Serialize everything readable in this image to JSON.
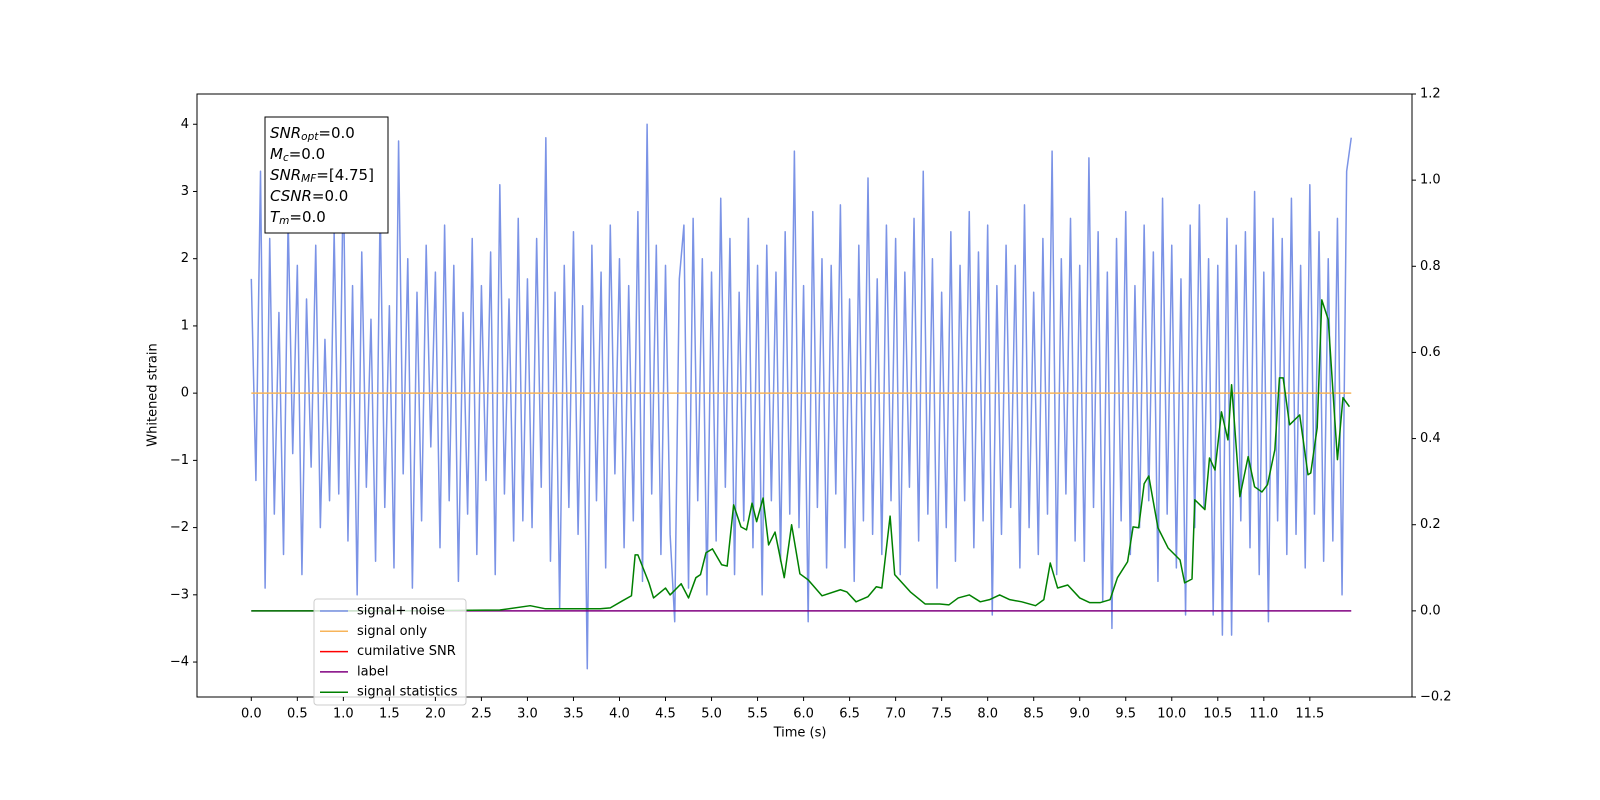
{
  "chart_data": {
    "type": "line",
    "xlabel": "Time (s)",
    "ylabel": "Whitened strain",
    "xlim": [
      -0.59,
      12.61
    ],
    "ylim": [
      -4.52,
      4.45
    ],
    "y2lim": [
      -0.2,
      1.2
    ],
    "xticks": [
      {
        "value": 0,
        "label": "0.0"
      },
      0.5,
      {
        "value": 1,
        "label": "1.0"
      },
      1.5,
      {
        "value": 2,
        "label": "2.0"
      },
      2.5,
      {
        "value": 3,
        "label": "3.0"
      },
      3.5,
      {
        "value": 4,
        "label": "4.0"
      },
      4.5,
      {
        "value": 5,
        "label": "5.0"
      },
      5.5,
      {
        "value": 6,
        "label": "6.0"
      },
      6.5,
      {
        "value": 7,
        "label": "7.0"
      },
      7.5,
      {
        "value": 8,
        "label": "8.0"
      },
      8.5,
      {
        "value": 9,
        "label": "9.0"
      },
      9.5,
      {
        "value": 10,
        "label": "10.0"
      },
      10.5,
      {
        "value": 11,
        "label": "11.0"
      },
      11.5
    ],
    "yticks": [
      {
        "value": -4,
        "label": "−4"
      },
      {
        "value": -3,
        "label": "−3"
      },
      {
        "value": -2,
        "label": "−2"
      },
      {
        "value": -1,
        "label": "−1"
      },
      0,
      1,
      2,
      3,
      4
    ],
    "y2ticks": [
      {
        "value": -0.2,
        "label": "−0.2"
      },
      {
        "value": 0,
        "label": "0.0"
      },
      0.2,
      0.4,
      0.6,
      0.8,
      {
        "value": 1,
        "label": "1.0"
      },
      1.2
    ],
    "legend": "lower left",
    "annotations": [
      {
        "name": "SNR",
        "sub": "opt",
        "text": "=0.0"
      },
      {
        "name": "M",
        "sub": "c",
        "text": "=0.0"
      },
      {
        "name": "SNR",
        "sub": "MF",
        "text": "=[4.75]"
      },
      {
        "name": "CSNR",
        "text": "=0.0"
      },
      {
        "name": "T",
        "sub": "m",
        "text": "=0.0"
      }
    ],
    "series": [
      {
        "name": "signal+ noise",
        "color": "#7b93e6",
        "x": [
          0,
          0.05,
          0.1,
          0.15,
          0.2,
          0.25,
          0.3,
          0.35,
          0.4,
          0.45,
          0.5,
          0.55,
          0.6,
          0.65,
          0.7,
          0.75,
          0.8,
          0.85,
          0.9,
          0.95,
          1,
          1.05,
          1.1,
          1.15,
          1.2,
          1.25,
          1.3,
          1.35,
          1.4,
          1.45,
          1.5,
          1.55,
          1.6,
          1.65,
          1.7,
          1.75,
          1.8,
          1.85,
          1.9,
          1.95,
          2,
          2.05,
          2.1,
          2.15,
          2.2,
          2.25,
          2.3,
          2.35,
          2.4,
          2.45,
          2.5,
          2.55,
          2.6,
          2.65,
          2.7,
          2.75,
          2.8,
          2.85,
          2.9,
          2.95,
          3,
          3.05,
          3.1,
          3.15,
          3.2,
          3.25,
          3.3,
          3.35,
          3.4,
          3.45,
          3.5,
          3.55,
          3.6,
          3.65,
          3.7,
          3.75,
          3.8,
          3.85,
          3.9,
          3.95,
          4,
          4.05,
          4.1,
          4.15,
          4.2,
          4.25,
          4.3,
          4.35,
          4.4,
          4.45,
          4.5,
          4.55,
          4.6,
          4.65,
          4.7,
          4.75,
          4.8,
          4.85,
          4.9,
          4.95,
          5,
          5.05,
          5.1,
          5.15,
          5.2,
          5.25,
          5.3,
          5.35,
          5.4,
          5.45,
          5.5,
          5.55,
          5.6,
          5.65,
          5.7,
          5.75,
          5.8,
          5.85,
          5.9,
          5.95,
          6,
          6.05,
          6.1,
          6.15,
          6.2,
          6.25,
          6.3,
          6.35,
          6.4,
          6.45,
          6.5,
          6.55,
          6.6,
          6.65,
          6.7,
          6.75,
          6.8,
          6.85,
          6.9,
          6.95,
          7,
          7.05,
          7.1,
          7.15,
          7.2,
          7.25,
          7.3,
          7.35,
          7.4,
          7.45,
          7.5,
          7.55,
          7.6,
          7.65,
          7.7,
          7.75,
          7.8,
          7.85,
          7.9,
          7.95,
          8,
          8.05,
          8.1,
          8.15,
          8.2,
          8.25,
          8.3,
          8.35,
          8.4,
          8.45,
          8.5,
          8.55,
          8.6,
          8.65,
          8.7,
          8.75,
          8.8,
          8.85,
          8.9,
          8.95,
          9,
          9.05,
          9.1,
          9.15,
          9.2,
          9.25,
          9.3,
          9.35,
          9.4,
          9.45,
          9.5,
          9.55,
          9.6,
          9.65,
          9.7,
          9.75,
          9.8,
          9.85,
          9.9,
          9.95,
          10,
          10.05,
          10.1,
          10.15,
          10.2,
          10.25,
          10.3,
          10.35,
          10.4,
          10.45,
          10.5,
          10.55,
          10.6,
          10.65,
          10.7,
          10.75,
          10.8,
          10.85,
          10.9,
          10.95,
          11,
          11.05,
          11.1,
          11.15,
          11.2,
          11.25,
          11.3,
          11.35,
          11.4,
          11.45,
          11.5,
          11.55,
          11.6,
          11.65,
          11.7,
          11.75,
          11.8,
          11.85,
          11.9,
          11.95
        ],
        "values": [
          1.7,
          -1.3,
          3.3,
          -2.9,
          2.3,
          -1.8,
          1.2,
          -2.4,
          2.6,
          -0.9,
          1.9,
          -2.7,
          1.4,
          -1.1,
          2.2,
          -2.0,
          0.8,
          -1.6,
          2.4,
          -1.5,
          3.3,
          -2.2,
          1.6,
          -3.0,
          2.1,
          -1.4,
          1.1,
          -2.5,
          2.8,
          -1.7,
          1.3,
          -2.6,
          3.75,
          -1.2,
          2.0,
          -2.9,
          1.5,
          -1.9,
          2.2,
          -0.8,
          1.8,
          -2.3,
          2.5,
          -1.6,
          1.9,
          -2.8,
          1.2,
          -1.8,
          2.3,
          -2.4,
          1.6,
          -1.3,
          2.1,
          -2.7,
          3.1,
          -1.5,
          1.4,
          -2.2,
          2.6,
          -1.9,
          1.7,
          -2.0,
          2.3,
          -1.4,
          3.8,
          -2.5,
          1.5,
          -3.2,
          1.9,
          -1.7,
          2.4,
          -2.1,
          1.3,
          -4.1,
          2.2,
          -1.6,
          1.8,
          -2.6,
          2.5,
          -1.2,
          2.0,
          -2.3,
          1.6,
          -1.9,
          2.7,
          -2.8,
          4.0,
          -1.5,
          2.2,
          -2.4,
          1.9,
          -2.1,
          -3.4,
          1.7,
          2.5,
          -2.9,
          2.6,
          -1.6,
          2.0,
          -3.0,
          1.8,
          -2.2,
          2.9,
          -1.4,
          2.3,
          -2.7,
          1.5,
          -1.9,
          2.6,
          -2.3,
          1.9,
          -3.0,
          2.2,
          -1.6,
          1.8,
          -2.5,
          2.4,
          -1.8,
          3.6,
          -2.0,
          1.6,
          -3.4,
          2.7,
          -1.7,
          2.0,
          -2.6,
          1.9,
          -1.5,
          2.8,
          -2.3,
          1.4,
          -2.8,
          2.2,
          -1.9,
          3.2,
          -2.1,
          1.7,
          -2.4,
          2.5,
          -1.6,
          2.3,
          -2.7,
          1.8,
          -1.4,
          2.6,
          -2.2,
          3.3,
          -1.8,
          2.0,
          -2.9,
          1.5,
          -2.0,
          2.4,
          -2.5,
          1.9,
          -1.6,
          2.7,
          -2.3,
          2.1,
          -1.9,
          2.5,
          -3.3,
          1.6,
          -2.1,
          2.2,
          -1.7,
          1.9,
          -2.6,
          2.8,
          -2.0,
          1.5,
          -2.4,
          2.3,
          -1.8,
          3.6,
          -2.7,
          2.0,
          -1.5,
          2.6,
          -2.2,
          1.9,
          -2.5,
          3.5,
          -1.7,
          2.4,
          -3.1,
          1.8,
          -3.5,
          2.3,
          -1.9,
          2.7,
          -2.4,
          1.6,
          -2.0,
          2.5,
          -1.6,
          2.1,
          -2.8,
          2.9,
          -1.8,
          2.2,
          -2.6,
          1.7,
          -3.3,
          2.5,
          -2.0,
          2.8,
          -1.7,
          2.0,
          -3.3,
          1.9,
          -3.6,
          2.6,
          -3.6,
          2.2,
          -1.9,
          2.4,
          -2.3,
          3.0,
          -2.7,
          1.8,
          -3.4,
          2.6,
          -1.9,
          2.3,
          -2.4,
          2.9,
          -2.1,
          1.9,
          -2.6,
          3.1,
          -1.8,
          2.4,
          -2.5,
          2.0,
          -2.2,
          2.6,
          -3.0,
          3.3,
          3.8
        ]
      },
      {
        "name": "signal only",
        "color": "#f7b45a",
        "x": [
          0,
          11.95
        ],
        "values": [
          0,
          0
        ]
      },
      {
        "name": "cumilative SNR",
        "color": "#ff0000",
        "x": [],
        "values": []
      },
      {
        "name": "label",
        "color": "#800080",
        "axis": "y2",
        "x": [
          0,
          11.95
        ],
        "values": [
          0,
          0
        ]
      },
      {
        "name": "signal statistics",
        "color": "#008000",
        "axis": "y2",
        "x": [
          0,
          0.53,
          1.62,
          2.7,
          3.03,
          3.19,
          3.79,
          3.9,
          4.03,
          4.13,
          4.17,
          4.2,
          4.32,
          4.37,
          4.5,
          4.55,
          4.67,
          4.75,
          4.83,
          4.88,
          4.94,
          5.01,
          5.11,
          5.17,
          5.24,
          5.32,
          5.38,
          5.44,
          5.49,
          5.56,
          5.62,
          5.69,
          5.79,
          5.87,
          5.96,
          6.05,
          6.2,
          6.4,
          6.47,
          6.57,
          6.7,
          6.79,
          6.85,
          6.94,
          6.99,
          7.16,
          7.32,
          7.48,
          7.58,
          7.68,
          7.8,
          7.92,
          8.02,
          8.13,
          8.24,
          8.37,
          8.52,
          8.61,
          8.68,
          8.76,
          8.87,
          9.0,
          9.11,
          9.22,
          9.33,
          9.41,
          9.52,
          9.58,
          9.64,
          9.7,
          9.75,
          9.85,
          9.96,
          10.09,
          10.14,
          10.22,
          10.25,
          10.36,
          10.41,
          10.47,
          10.54,
          10.61,
          10.65,
          10.74,
          10.83,
          10.9,
          10.98,
          11.04,
          11.12,
          11.17,
          11.21,
          11.28,
          11.39,
          11.48,
          11.51,
          11.58,
          11.63,
          11.7,
          11.8,
          11.86,
          11.93
        ],
        "values": [
          0,
          0,
          0,
          0.002,
          0.012,
          0.005,
          0.005,
          0.007,
          0.023,
          0.035,
          0.13,
          0.13,
          0.065,
          0.03,
          0.053,
          0.037,
          0.063,
          0.03,
          0.077,
          0.084,
          0.135,
          0.144,
          0.107,
          0.104,
          0.246,
          0.195,
          0.188,
          0.25,
          0.207,
          0.262,
          0.153,
          0.183,
          0.077,
          0.2,
          0.086,
          0.072,
          0.035,
          0.049,
          0.044,
          0.021,
          0.033,
          0.056,
          0.053,
          0.22,
          0.084,
          0.044,
          0.016,
          0.016,
          0.014,
          0.03,
          0.037,
          0.021,
          0.026,
          0.037,
          0.026,
          0.021,
          0.012,
          0.026,
          0.111,
          0.053,
          0.06,
          0.03,
          0.019,
          0.019,
          0.026,
          0.077,
          0.114,
          0.195,
          0.193,
          0.295,
          0.313,
          0.193,
          0.146,
          0.118,
          0.065,
          0.074,
          0.258,
          0.235,
          0.355,
          0.327,
          0.462,
          0.397,
          0.525,
          0.265,
          0.358,
          0.288,
          0.276,
          0.293,
          0.374,
          0.541,
          0.541,
          0.432,
          0.455,
          0.316,
          0.32,
          0.425,
          0.722,
          0.676,
          0.351,
          0.495,
          0.474
        ]
      }
    ]
  }
}
